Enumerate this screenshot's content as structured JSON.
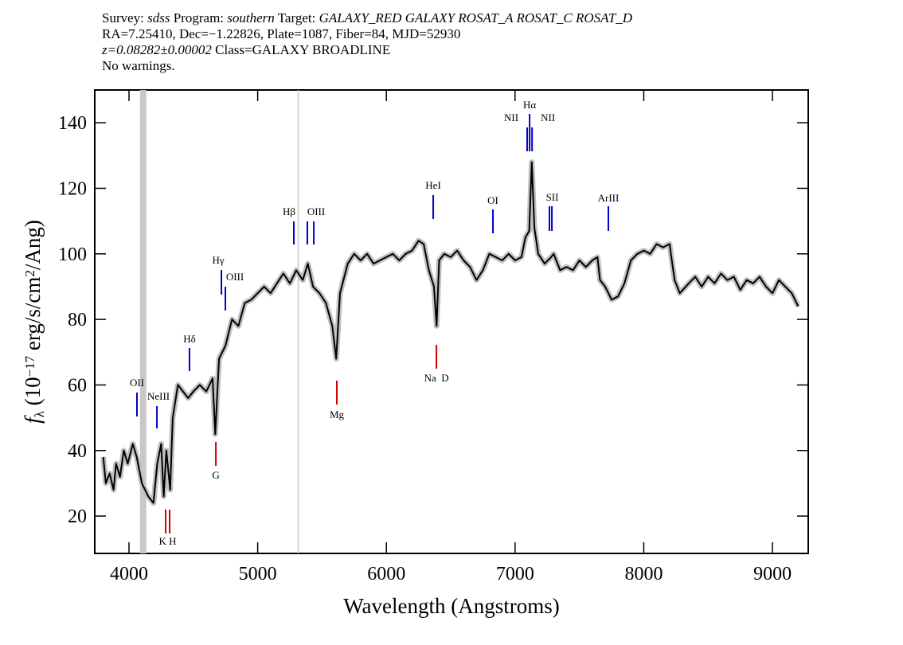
{
  "chart_data": {
    "type": "line",
    "header": [
      [
        {
          "text": "Survey: "
        },
        {
          "text": "sdss",
          "italic": true
        },
        {
          "text": " Program: "
        },
        {
          "text": "southern",
          "italic": true
        },
        {
          "text": " Target: "
        },
        {
          "text": "GALAXY_RED GALAXY ROSAT_A ROSAT_C ROSAT_D",
          "italic": true
        }
      ],
      [
        {
          "text": "RA=7.25410, Dec=−1.22826, Plate=1087, Fiber=84, MJD=52930"
        }
      ],
      [
        {
          "text": "z=0.08282±0.00002",
          "italic": true
        },
        {
          "text": " Class=GALAXY BROADLINE"
        }
      ],
      [
        {
          "text": "No warnings."
        }
      ]
    ],
    "xlabel": "Wavelength (Angstroms)",
    "ylabel": [
      {
        "text": "f",
        "italic": true
      },
      {
        "text": "λ",
        "style": "sub"
      },
      {
        "text": " (10"
      },
      {
        "text": "−17",
        "style": "sup"
      },
      {
        "text": " erg/s/cm"
      },
      {
        "text": "2",
        "style": "sup"
      },
      {
        "text": "/Ang)"
      }
    ],
    "xlim": [
      3734,
      9278
    ],
    "ylim": [
      8.6,
      150
    ],
    "xticks": [
      4000,
      5000,
      6000,
      7000,
      8000,
      9000
    ],
    "yticks": [
      20,
      40,
      60,
      80,
      100,
      120,
      140
    ],
    "color": "#000000",
    "masked": [
      4110,
      5315
    ],
    "x": [
      3800,
      3820,
      3850,
      3880,
      3900,
      3930,
      3960,
      3990,
      4030,
      4060,
      4100,
      4150,
      4190,
      4220,
      4250,
      4270,
      4290,
      4320,
      4340,
      4380,
      4420,
      4460,
      4500,
      4550,
      4600,
      4650,
      4670,
      4700,
      4750,
      4800,
      4850,
      4900,
      4950,
      5000,
      5050,
      5100,
      5150,
      5200,
      5250,
      5300,
      5350,
      5390,
      5430,
      5480,
      5530,
      5580,
      5610,
      5640,
      5700,
      5750,
      5800,
      5850,
      5900,
      5950,
      6000,
      6050,
      6100,
      6150,
      6200,
      6250,
      6290,
      6330,
      6370,
      6390,
      6410,
      6450,
      6500,
      6550,
      6600,
      6650,
      6700,
      6750,
      6800,
      6850,
      6900,
      6950,
      7000,
      7050,
      7080,
      7110,
      7130,
      7150,
      7180,
      7230,
      7280,
      7300,
      7350,
      7400,
      7450,
      7500,
      7550,
      7600,
      7640,
      7660,
      7700,
      7750,
      7800,
      7850,
      7900,
      7950,
      8000,
      8050,
      8100,
      8150,
      8200,
      8240,
      8280,
      8350,
      8400,
      8450,
      8500,
      8550,
      8600,
      8650,
      8700,
      8750,
      8800,
      8850,
      8900,
      8950,
      9000,
      9050,
      9100,
      9150,
      9200
    ],
    "values": [
      38,
      30,
      33,
      28,
      36,
      32,
      40,
      36,
      42,
      38,
      30,
      26,
      24,
      36,
      42,
      26,
      40,
      28,
      50,
      60,
      58,
      56,
      58,
      60,
      58,
      62,
      45,
      68,
      72,
      80,
      78,
      85,
      86,
      88,
      90,
      88,
      91,
      94,
      91,
      95,
      92,
      97,
      90,
      88,
      85,
      78,
      68,
      88,
      97,
      100,
      98,
      100,
      97,
      98,
      99,
      100,
      98,
      100,
      101,
      104,
      103,
      95,
      90,
      78,
      98,
      100,
      99,
      101,
      98,
      96,
      92,
      95,
      100,
      99,
      98,
      100,
      98,
      99,
      105,
      107,
      128,
      108,
      100,
      97,
      99,
      100,
      95,
      96,
      95,
      98,
      96,
      98,
      99,
      92,
      90,
      86,
      87,
      91,
      98,
      100,
      101,
      100,
      103,
      102,
      103,
      92,
      88,
      91,
      93,
      90,
      93,
      91,
      94,
      92,
      93,
      89,
      92,
      91,
      93,
      90,
      88,
      92,
      90,
      88,
      84
    ],
    "lines": [
      {
        "label": "OII",
        "x": [
          4062
        ],
        "color": "#0000cc"
      },
      {
        "label": "NeIII",
        "x": [
          4217
        ],
        "color": "#0000cc"
      },
      {
        "label": "Hδ",
        "x": [
          4470
        ],
        "color": "#0000cc"
      },
      {
        "label": "Hγ",
        "x": [
          4718
        ],
        "color": "#0000cc"
      },
      {
        "label": "OIII",
        "x": [
          4749
        ],
        "color": "#0000cc"
      },
      {
        "label": "Hβ",
        "x": [
          5281
        ],
        "color": "#0000cc"
      },
      {
        "label": "OIII",
        "x": [
          5386,
          5436
        ],
        "color": "#0000cc"
      },
      {
        "label": "HeI",
        "x": [
          6364
        ],
        "color": "#0000cc"
      },
      {
        "label": "OI",
        "x": [
          6828
        ],
        "color": "#0000cc"
      },
      {
        "label": "NII",
        "x": [
          7094
        ],
        "color": "#0000cc"
      },
      {
        "label": "Hα",
        "x": [
          7113
        ],
        "color": "#0000cc"
      },
      {
        "label": "NII",
        "x": [
          7132
        ],
        "color": "#0000cc"
      },
      {
        "label": "SII",
        "x": [
          7267,
          7286
        ],
        "color": "#0000cc"
      },
      {
        "label": "ArIII",
        "x": [
          7725
        ],
        "color": "#0000cc"
      },
      {
        "label": "K H",
        "x": [
          4285,
          4316
        ],
        "color": "#cc0000"
      },
      {
        "label": "G",
        "x": [
          4675
        ],
        "color": "#cc0000"
      },
      {
        "label": "Mg",
        "x": [
          5615
        ],
        "color": "#cc0000"
      },
      {
        "label": "Na  D",
        "x": [
          6389
        ],
        "color": "#cc0000"
      }
    ]
  }
}
